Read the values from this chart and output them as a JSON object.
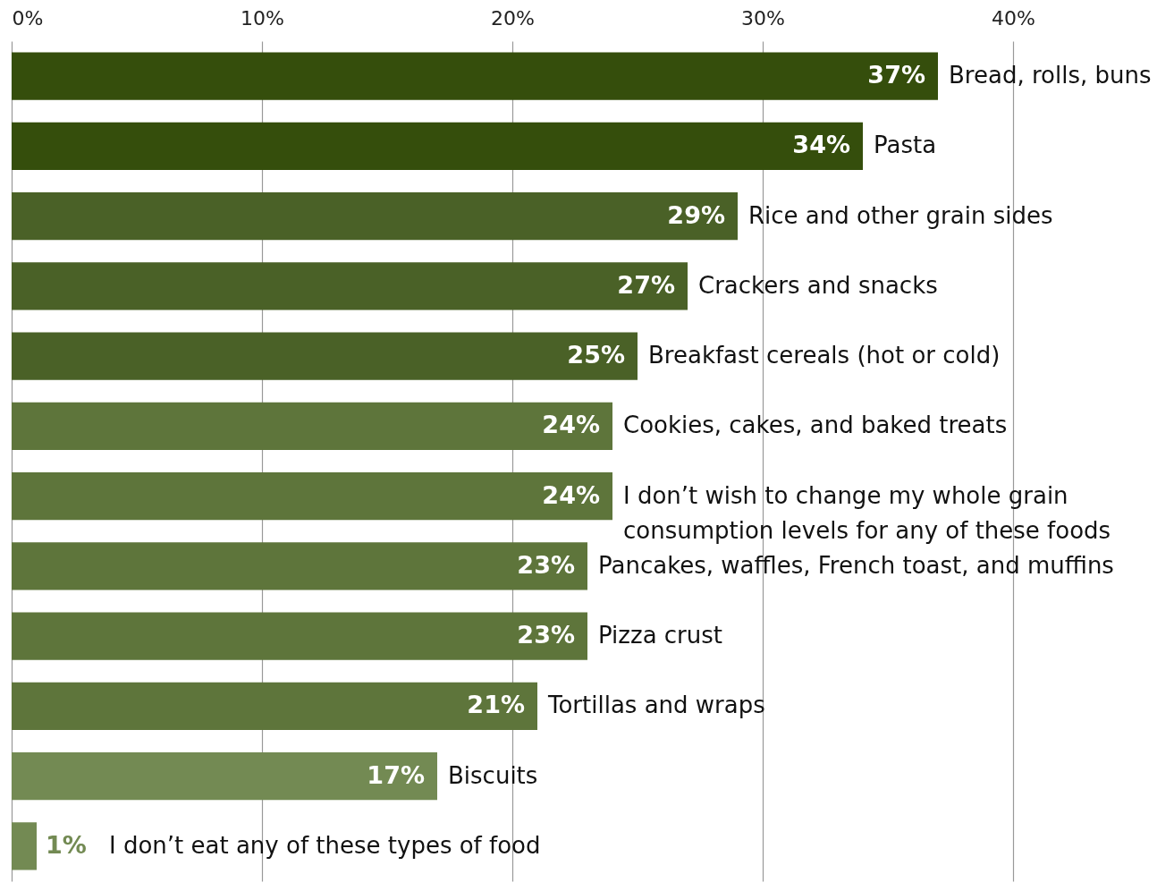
{
  "chart_data": {
    "type": "bar",
    "orientation": "horizontal",
    "categories": [
      "Bread, rolls, buns",
      "Pasta",
      "Rice and other grain sides",
      "Crackers and snacks",
      "Breakfast cereals (hot or cold)",
      "Cookies, cakes, and baked treats",
      "I don’t wish to change my whole grain consumption levels for any of these foods",
      "Pancakes, waffles, French toast, and muffins",
      "Pizza crust",
      "Tortillas and wraps",
      "Biscuits",
      "I don’t eat any of these types of food"
    ],
    "values": [
      37,
      34,
      29,
      27,
      25,
      24,
      24,
      23,
      23,
      21,
      17,
      1
    ],
    "value_labels": [
      "37%",
      "34%",
      "29%",
      "27%",
      "25%",
      "24%",
      "24%",
      "23%",
      "23%",
      "21%",
      "17%",
      "1%"
    ],
    "colors": [
      "#354e0c",
      "#354e0c",
      "#4a6127",
      "#4a6127",
      "#4a6127",
      "#5e753b",
      "#5e753b",
      "#5e753b",
      "#5e753b",
      "#5e753b",
      "#738a53",
      "#738a53"
    ],
    "xlim": [
      0,
      45.75
    ],
    "xticks": [
      {
        "value": 0,
        "label": "0%"
      },
      {
        "value": 10,
        "label": "10%"
      },
      {
        "value": 20,
        "label": "20%"
      },
      {
        "value": 30,
        "label": "30%"
      },
      {
        "value": 40,
        "label": "40%"
      }
    ],
    "grid": "x"
  }
}
